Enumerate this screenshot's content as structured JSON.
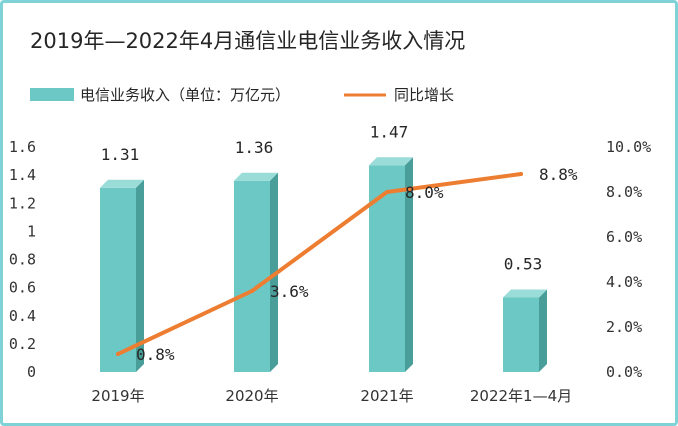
{
  "chart_data": {
    "type": "bar",
    "title": "2019年—2022年4月通信业电信业务收入情况",
    "categories": [
      "2019年",
      "2020年",
      "2021年",
      "2022年1—4月"
    ],
    "series": [
      {
        "name": "电信业务收入（单位：万亿元）",
        "type": "bar",
        "axis": "left",
        "values": [
          1.31,
          1.36,
          1.47,
          0.53
        ],
        "labels": [
          "1.31",
          "1.36",
          "1.47",
          "0.53"
        ],
        "color": "#6cc8c4"
      },
      {
        "name": "同比增长",
        "type": "line",
        "axis": "right",
        "values": [
          0.8,
          3.6,
          8.0,
          8.8
        ],
        "labels": [
          "0.8%",
          "3.6%",
          "8.0%",
          "8.8%"
        ],
        "color": "#ed7d31"
      }
    ],
    "y_left": {
      "ylim": [
        0,
        1.6
      ],
      "ticks": [
        "0",
        "0.2",
        "0.4",
        "0.6",
        "0.8",
        "1",
        "1.2",
        "1.4",
        "1.6"
      ]
    },
    "y_right": {
      "ylim": [
        0,
        10
      ],
      "ticks": [
        "0.0%",
        "2.0%",
        "4.0%",
        "6.0%",
        "8.0%",
        "10.0%"
      ]
    },
    "grid": false,
    "legend": "top-left"
  },
  "colors": {
    "frame": "#7fd3d6",
    "bar_front": "#6cc8c4",
    "bar_side": "#4a9e9a",
    "bar_top": "#9adcd8",
    "line": "#ed7d31"
  }
}
